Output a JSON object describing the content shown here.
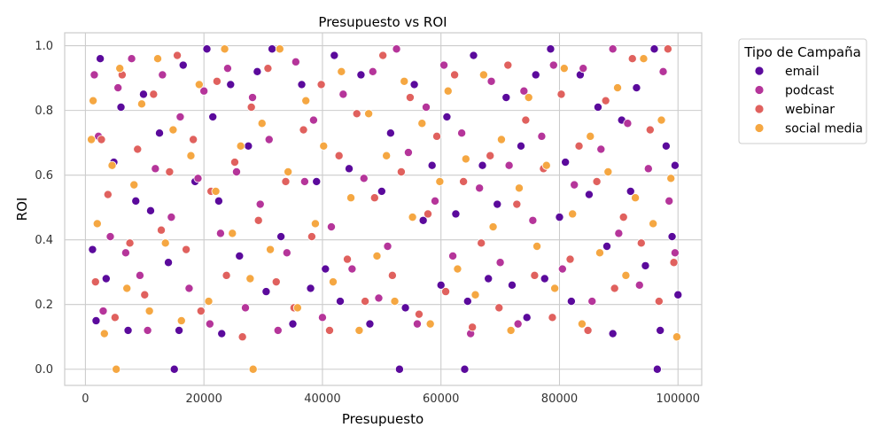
{
  "chart_data": {
    "type": "scatter",
    "title": "Presupuesto vs ROI",
    "xlabel": "Presupuesto",
    "ylabel": "ROI",
    "xlim": [
      -3500,
      104000
    ],
    "ylim": [
      -0.05,
      1.04
    ],
    "x_ticks": [
      0,
      20000,
      40000,
      60000,
      80000,
      100000
    ],
    "x_tick_labels": [
      "0",
      "20000",
      "40000",
      "60000",
      "80000",
      "100000"
    ],
    "y_ticks": [
      0.0,
      0.2,
      0.4,
      0.6,
      0.8,
      1.0
    ],
    "y_tick_labels": [
      "0.0",
      "0.2",
      "0.4",
      "0.6",
      "0.8",
      "1.0"
    ],
    "grid": true,
    "legend": {
      "title": "Tipo de Campaña",
      "placement": "outside-top-right",
      "entries": [
        "email",
        "podcast",
        "webinar",
        "social media"
      ]
    },
    "series": [
      {
        "name": "email",
        "color": "#5b0a9c",
        "points": [
          [
            1200,
            0.37
          ],
          [
            1800,
            0.15
          ],
          [
            2500,
            0.96
          ],
          [
            3500,
            0.28
          ],
          [
            4800,
            0.64
          ],
          [
            6000,
            0.81
          ],
          [
            7200,
            0.12
          ],
          [
            8500,
            0.52
          ],
          [
            9800,
            0.85
          ],
          [
            11000,
            0.49
          ],
          [
            12500,
            0.73
          ],
          [
            14000,
            0.33
          ],
          [
            15000,
            0.0
          ],
          [
            15800,
            0.12
          ],
          [
            16500,
            0.94
          ],
          [
            18500,
            0.58
          ],
          [
            20500,
            0.99
          ],
          [
            21500,
            0.78
          ],
          [
            22500,
            0.52
          ],
          [
            23000,
            0.11
          ],
          [
            24500,
            0.88
          ],
          [
            26000,
            0.35
          ],
          [
            27500,
            0.69
          ],
          [
            29000,
            0.92
          ],
          [
            30500,
            0.24
          ],
          [
            31500,
            0.99
          ],
          [
            33000,
            0.41
          ],
          [
            35000,
            0.14
          ],
          [
            36500,
            0.88
          ],
          [
            38000,
            0.25
          ],
          [
            39000,
            0.58
          ],
          [
            40500,
            0.31
          ],
          [
            42000,
            0.97
          ],
          [
            43000,
            0.21
          ],
          [
            44500,
            0.62
          ],
          [
            46500,
            0.91
          ],
          [
            48000,
            0.14
          ],
          [
            50000,
            0.55
          ],
          [
            51500,
            0.73
          ],
          [
            53000,
            0.0
          ],
          [
            54000,
            0.19
          ],
          [
            55500,
            0.88
          ],
          [
            57000,
            0.46
          ],
          [
            58500,
            0.63
          ],
          [
            60000,
            0.26
          ],
          [
            61000,
            0.78
          ],
          [
            62500,
            0.48
          ],
          [
            64000,
            0.0
          ],
          [
            64500,
            0.21
          ],
          [
            65500,
            0.97
          ],
          [
            67000,
            0.63
          ],
          [
            68000,
            0.28
          ],
          [
            69500,
            0.51
          ],
          [
            71000,
            0.84
          ],
          [
            72000,
            0.26
          ],
          [
            73500,
            0.69
          ],
          [
            74500,
            0.16
          ],
          [
            76000,
            0.91
          ],
          [
            77500,
            0.28
          ],
          [
            78500,
            0.99
          ],
          [
            80000,
            0.47
          ],
          [
            81000,
            0.64
          ],
          [
            82000,
            0.21
          ],
          [
            83500,
            0.91
          ],
          [
            85000,
            0.54
          ],
          [
            86500,
            0.81
          ],
          [
            88000,
            0.38
          ],
          [
            89000,
            0.11
          ],
          [
            90500,
            0.77
          ],
          [
            92000,
            0.55
          ],
          [
            93000,
            0.87
          ],
          [
            94500,
            0.32
          ],
          [
            96000,
            0.99
          ],
          [
            96500,
            0.0
          ],
          [
            97000,
            0.12
          ],
          [
            98000,
            0.69
          ],
          [
            99000,
            0.41
          ],
          [
            99500,
            0.63
          ],
          [
            100000,
            0.23
          ]
        ]
      },
      {
        "name": "podcast",
        "color": "#b5359a",
        "points": [
          [
            1500,
            0.91
          ],
          [
            2200,
            0.72
          ],
          [
            3000,
            0.18
          ],
          [
            4200,
            0.41
          ],
          [
            5500,
            0.87
          ],
          [
            6800,
            0.36
          ],
          [
            7800,
            0.96
          ],
          [
            9200,
            0.29
          ],
          [
            10500,
            0.12
          ],
          [
            11800,
            0.62
          ],
          [
            13000,
            0.91
          ],
          [
            14500,
            0.47
          ],
          [
            16000,
            0.78
          ],
          [
            17500,
            0.25
          ],
          [
            19000,
            0.59
          ],
          [
            20000,
            0.86
          ],
          [
            21000,
            0.14
          ],
          [
            22800,
            0.42
          ],
          [
            24000,
            0.93
          ],
          [
            25500,
            0.61
          ],
          [
            27000,
            0.19
          ],
          [
            28200,
            0.84
          ],
          [
            29500,
            0.51
          ],
          [
            31000,
            0.71
          ],
          [
            32500,
            0.12
          ],
          [
            34000,
            0.36
          ],
          [
            35500,
            0.95
          ],
          [
            37000,
            0.58
          ],
          [
            38500,
            0.77
          ],
          [
            40000,
            0.16
          ],
          [
            41500,
            0.44
          ],
          [
            43500,
            0.85
          ],
          [
            45000,
            0.31
          ],
          [
            47000,
            0.59
          ],
          [
            48500,
            0.92
          ],
          [
            49500,
            0.22
          ],
          [
            51000,
            0.38
          ],
          [
            52500,
            0.99
          ],
          [
            54500,
            0.67
          ],
          [
            56000,
            0.14
          ],
          [
            57500,
            0.81
          ],
          [
            59000,
            0.52
          ],
          [
            60500,
            0.94
          ],
          [
            62000,
            0.35
          ],
          [
            63500,
            0.73
          ],
          [
            65000,
            0.11
          ],
          [
            66500,
            0.56
          ],
          [
            68500,
            0.89
          ],
          [
            70000,
            0.33
          ],
          [
            71500,
            0.63
          ],
          [
            73000,
            0.14
          ],
          [
            74000,
            0.86
          ],
          [
            75500,
            0.46
          ],
          [
            77000,
            0.72
          ],
          [
            79000,
            0.94
          ],
          [
            80500,
            0.31
          ],
          [
            82500,
            0.57
          ],
          [
            84000,
            0.93
          ],
          [
            85500,
            0.21
          ],
          [
            87000,
            0.68
          ],
          [
            89000,
            0.99
          ],
          [
            90000,
            0.42
          ],
          [
            91500,
            0.76
          ],
          [
            93500,
            0.26
          ],
          [
            95000,
            0.62
          ],
          [
            97500,
            0.92
          ],
          [
            98500,
            0.52
          ],
          [
            99500,
            0.36
          ]
        ]
      },
      {
        "name": "webinar",
        "color": "#e0615e",
        "points": [
          [
            1700,
            0.27
          ],
          [
            2700,
            0.71
          ],
          [
            3800,
            0.54
          ],
          [
            5000,
            0.16
          ],
          [
            6200,
            0.91
          ],
          [
            7500,
            0.39
          ],
          [
            8800,
            0.68
          ],
          [
            10000,
            0.23
          ],
          [
            11500,
            0.85
          ],
          [
            12800,
            0.43
          ],
          [
            14200,
            0.61
          ],
          [
            15500,
            0.97
          ],
          [
            17000,
            0.37
          ],
          [
            18200,
            0.71
          ],
          [
            19500,
            0.18
          ],
          [
            21200,
            0.55
          ],
          [
            22200,
            0.89
          ],
          [
            23800,
            0.29
          ],
          [
            25200,
            0.64
          ],
          [
            26500,
            0.1
          ],
          [
            28000,
            0.81
          ],
          [
            29200,
            0.46
          ],
          [
            30800,
            0.93
          ],
          [
            32200,
            0.27
          ],
          [
            33800,
            0.58
          ],
          [
            35200,
            0.19
          ],
          [
            36800,
            0.74
          ],
          [
            38200,
            0.41
          ],
          [
            39800,
            0.88
          ],
          [
            41200,
            0.12
          ],
          [
            42800,
            0.66
          ],
          [
            44200,
            0.34
          ],
          [
            45800,
            0.79
          ],
          [
            47200,
            0.21
          ],
          [
            48800,
            0.53
          ],
          [
            50200,
            0.97
          ],
          [
            51800,
            0.29
          ],
          [
            53300,
            0.61
          ],
          [
            54800,
            0.84
          ],
          [
            56300,
            0.17
          ],
          [
            57800,
            0.48
          ],
          [
            59300,
            0.72
          ],
          [
            60800,
            0.24
          ],
          [
            62300,
            0.91
          ],
          [
            63800,
            0.58
          ],
          [
            65300,
            0.13
          ],
          [
            66800,
            0.39
          ],
          [
            68300,
            0.66
          ],
          [
            69800,
            0.19
          ],
          [
            71300,
            0.94
          ],
          [
            72800,
            0.51
          ],
          [
            74300,
            0.77
          ],
          [
            75800,
            0.29
          ],
          [
            77300,
            0.62
          ],
          [
            78800,
            0.16
          ],
          [
            80300,
            0.85
          ],
          [
            81800,
            0.34
          ],
          [
            83300,
            0.69
          ],
          [
            84800,
            0.12
          ],
          [
            86300,
            0.58
          ],
          [
            87800,
            0.83
          ],
          [
            89300,
            0.25
          ],
          [
            90800,
            0.47
          ],
          [
            92300,
            0.96
          ],
          [
            93800,
            0.39
          ],
          [
            95300,
            0.74
          ],
          [
            96800,
            0.21
          ],
          [
            98300,
            0.99
          ],
          [
            99300,
            0.33
          ]
        ]
      },
      {
        "name": "social media",
        "color": "#f5a742",
        "points": [
          [
            1000,
            0.71
          ],
          [
            1300,
            0.83
          ],
          [
            2000,
            0.45
          ],
          [
            3200,
            0.11
          ],
          [
            4500,
            0.63
          ],
          [
            5200,
            0.0
          ],
          [
            5800,
            0.93
          ],
          [
            7000,
            0.25
          ],
          [
            8200,
            0.57
          ],
          [
            9500,
            0.82
          ],
          [
            10800,
            0.18
          ],
          [
            12200,
            0.96
          ],
          [
            13500,
            0.39
          ],
          [
            14800,
            0.74
          ],
          [
            16200,
            0.15
          ],
          [
            17800,
            0.66
          ],
          [
            19200,
            0.88
          ],
          [
            20800,
            0.21
          ],
          [
            22000,
            0.55
          ],
          [
            23500,
            0.99
          ],
          [
            24800,
            0.42
          ],
          [
            26200,
            0.69
          ],
          [
            27800,
            0.28
          ],
          [
            28300,
            0.0
          ],
          [
            29800,
            0.76
          ],
          [
            31200,
            0.37
          ],
          [
            32800,
            0.99
          ],
          [
            34200,
            0.61
          ],
          [
            35800,
            0.19
          ],
          [
            37200,
            0.83
          ],
          [
            38800,
            0.45
          ],
          [
            40200,
            0.69
          ],
          [
            41800,
            0.27
          ],
          [
            43200,
            0.92
          ],
          [
            44800,
            0.53
          ],
          [
            46200,
            0.12
          ],
          [
            47800,
            0.79
          ],
          [
            49200,
            0.35
          ],
          [
            50800,
            0.66
          ],
          [
            52200,
            0.21
          ],
          [
            53800,
            0.89
          ],
          [
            55200,
            0.47
          ],
          [
            56800,
            0.76
          ],
          [
            58200,
            0.14
          ],
          [
            59800,
            0.58
          ],
          [
            61200,
            0.86
          ],
          [
            62800,
            0.31
          ],
          [
            64200,
            0.65
          ],
          [
            65800,
            0.23
          ],
          [
            67200,
            0.91
          ],
          [
            68800,
            0.44
          ],
          [
            70200,
            0.71
          ],
          [
            71800,
            0.12
          ],
          [
            73200,
            0.56
          ],
          [
            74800,
            0.84
          ],
          [
            76200,
            0.38
          ],
          [
            77800,
            0.63
          ],
          [
            79200,
            0.25
          ],
          [
            80800,
            0.93
          ],
          [
            82200,
            0.48
          ],
          [
            83800,
            0.14
          ],
          [
            85200,
            0.72
          ],
          [
            86800,
            0.36
          ],
          [
            88200,
            0.61
          ],
          [
            89800,
            0.87
          ],
          [
            91200,
            0.29
          ],
          [
            92800,
            0.53
          ],
          [
            94200,
            0.96
          ],
          [
            95800,
            0.45
          ],
          [
            97200,
            0.77
          ],
          [
            98800,
            0.59
          ],
          [
            99800,
            0.1
          ]
        ]
      }
    ]
  }
}
